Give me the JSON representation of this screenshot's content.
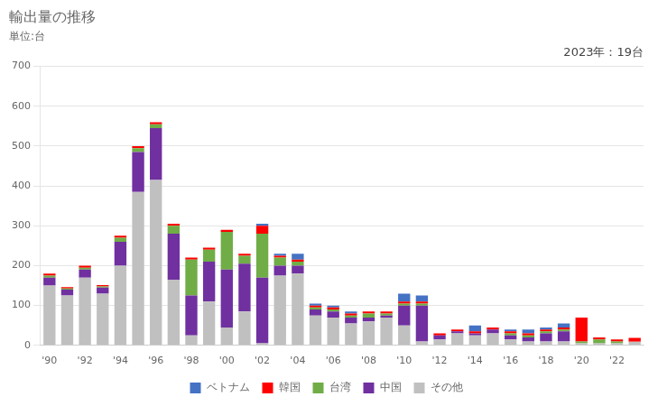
{
  "chart_data": {
    "type": "bar",
    "title": "輸出量の推移",
    "subtitle": "単位:台",
    "annotation": "2023年：19台",
    "stacked": true,
    "grid": true,
    "legend": "bottom",
    "categories": [
      "'90",
      null,
      "'92",
      null,
      "'94",
      null,
      "'96",
      null,
      "'98",
      null,
      "'00",
      null,
      "'02",
      null,
      "'04",
      null,
      "'06",
      null,
      "'08",
      null,
      "'10",
      null,
      "'12",
      null,
      "'14",
      null,
      "'16",
      null,
      "'18",
      null,
      "'20",
      null,
      "'22",
      null
    ],
    "series": [
      {
        "name": "その他",
        "color": "#c0c0c0",
        "values": [
          150,
          125,
          170,
          130,
          200,
          385,
          415,
          165,
          25,
          110,
          45,
          85,
          5,
          175,
          180,
          75,
          70,
          55,
          60,
          70,
          50,
          10,
          15,
          30,
          25,
          30,
          15,
          10,
          10,
          10,
          5,
          5,
          5,
          9
        ]
      },
      {
        "name": "中国",
        "color": "#7030a0",
        "values": [
          20,
          15,
          20,
          15,
          60,
          100,
          130,
          115,
          100,
          100,
          145,
          120,
          165,
          25,
          20,
          15,
          15,
          15,
          10,
          5,
          50,
          90,
          10,
          5,
          5,
          10,
          10,
          10,
          20,
          25,
          0,
          0,
          0,
          0
        ]
      },
      {
        "name": "台湾",
        "color": "#70ad47",
        "values": [
          5,
          3,
          5,
          3,
          10,
          10,
          10,
          20,
          90,
          30,
          95,
          20,
          110,
          20,
          10,
          5,
          5,
          5,
          10,
          5,
          5,
          5,
          0,
          0,
          0,
          0,
          5,
          5,
          5,
          5,
          5,
          10,
          5,
          0
        ]
      },
      {
        "name": "韓国",
        "color": "#ff0000",
        "values": [
          5,
          3,
          5,
          3,
          5,
          5,
          5,
          5,
          5,
          5,
          5,
          5,
          20,
          5,
          5,
          5,
          5,
          5,
          5,
          5,
          5,
          5,
          5,
          5,
          5,
          5,
          5,
          5,
          5,
          5,
          60,
          5,
          5,
          10
        ]
      },
      {
        "name": "ベトナム",
        "color": "#4472c4",
        "values": [
          0,
          0,
          0,
          0,
          0,
          0,
          0,
          0,
          0,
          0,
          0,
          0,
          5,
          5,
          15,
          5,
          5,
          5,
          0,
          0,
          20,
          15,
          0,
          0,
          15,
          0,
          5,
          10,
          5,
          10,
          0,
          0,
          0,
          0
        ]
      }
    ],
    "ylim": [
      0,
      700
    ],
    "yticks": [
      0,
      100,
      200,
      300,
      400,
      500,
      600,
      700
    ]
  }
}
